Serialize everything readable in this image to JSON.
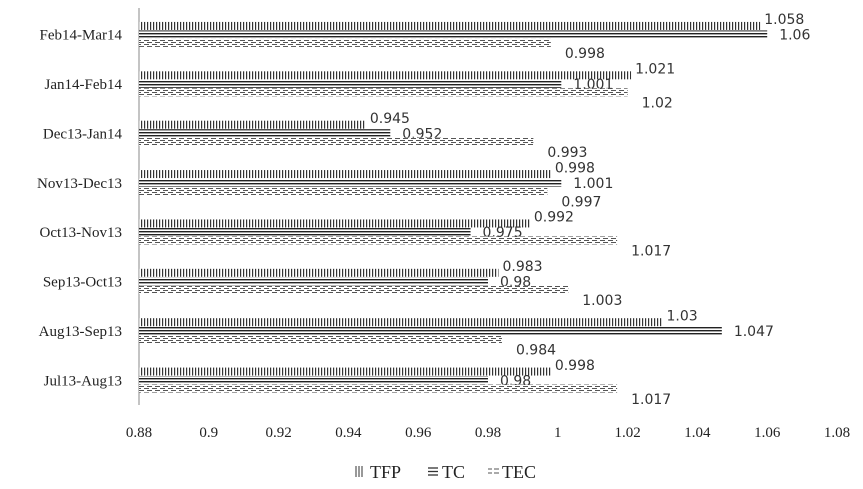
{
  "chart_data": {
    "type": "bar",
    "orientation": "horizontal",
    "categories": [
      "Feb14-Mar14",
      "Jan14-Feb14",
      "Dec13-Jan14",
      "Nov13-Dec13",
      "Oct13-Nov13",
      "Sep13-Oct13",
      "Aug13-Sep13",
      "Jul13-Aug13"
    ],
    "series": [
      {
        "name": "TFP",
        "pattern": "vertical-lines",
        "values": [
          1.058,
          1.021,
          0.945,
          0.998,
          0.992,
          0.983,
          1.03,
          0.998
        ],
        "labels": [
          "1.058",
          "1.021",
          "0.945",
          "0.998",
          "0.992",
          "0.983",
          "1.03",
          "0.998"
        ]
      },
      {
        "name": "TC",
        "pattern": "horizontal-lines",
        "values": [
          1.06,
          1.001,
          0.952,
          1.001,
          0.975,
          0.98,
          1.047,
          0.98
        ],
        "labels": [
          "1.06",
          "1.001",
          "0.952",
          "1.001",
          "0.975",
          "0.98",
          "1.047",
          "0.98"
        ]
      },
      {
        "name": "TEC",
        "pattern": "dashed-lines",
        "values": [
          0.998,
          1.02,
          0.993,
          0.997,
          1.017,
          1.003,
          0.984,
          1.017
        ],
        "labels": [
          "0.998",
          "1.02",
          "0.993",
          "0.997",
          "1.017",
          "1.003",
          "0.984",
          "1.017"
        ]
      }
    ],
    "xlim": [
      0.88,
      1.08
    ],
    "x_ticks": [
      "0.88",
      "0.9",
      "0.92",
      "0.94",
      "0.96",
      "0.98",
      "1",
      "1.02",
      "1.04",
      "1.06",
      "1.08"
    ],
    "grid": false,
    "legend_position": "bottom",
    "colors": {
      "bar": "#333333",
      "text": "#222222",
      "axis": "#888888"
    }
  }
}
